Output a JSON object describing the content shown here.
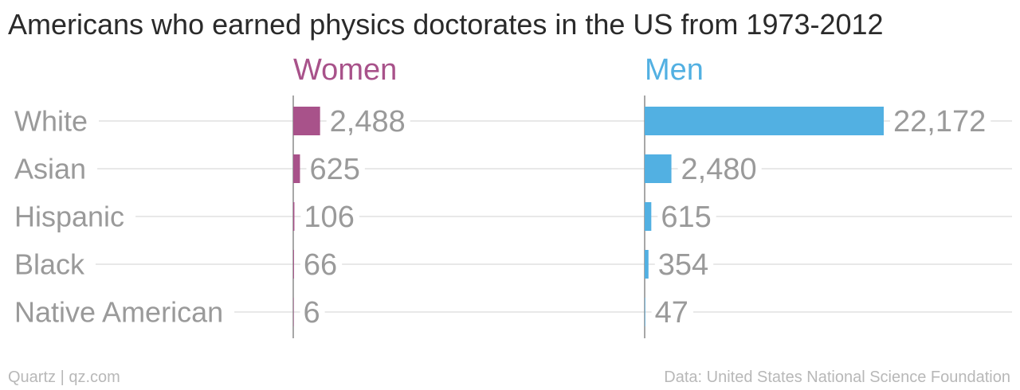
{
  "title": "Americans who earned physics doctorates in the US from 1973-2012",
  "footer": {
    "left": "Quartz | qz.com",
    "right": "Data: United States National Science Foundation"
  },
  "colors": {
    "women": "#a8528a",
    "men": "#52b0e2",
    "label": "#9a9a9a",
    "grid": "#e8e8e8",
    "axis": "#8a8a8a"
  },
  "chart_data": {
    "type": "bar",
    "orientation": "horizontal",
    "panels": [
      "Women",
      "Men"
    ],
    "categories": [
      "White",
      "Asian",
      "Hispanic",
      "Black",
      "Native American"
    ],
    "series": [
      {
        "name": "Women",
        "values": [
          2488,
          625,
          106,
          66,
          6
        ],
        "labels": [
          "2,488",
          "625",
          "106",
          "66",
          "6"
        ]
      },
      {
        "name": "Men",
        "values": [
          22172,
          2480,
          615,
          354,
          47
        ],
        "labels": [
          "22,172",
          "2,480",
          "615",
          "354",
          "47"
        ]
      }
    ],
    "xlim": [
      0,
      22172
    ],
    "grid": true
  }
}
